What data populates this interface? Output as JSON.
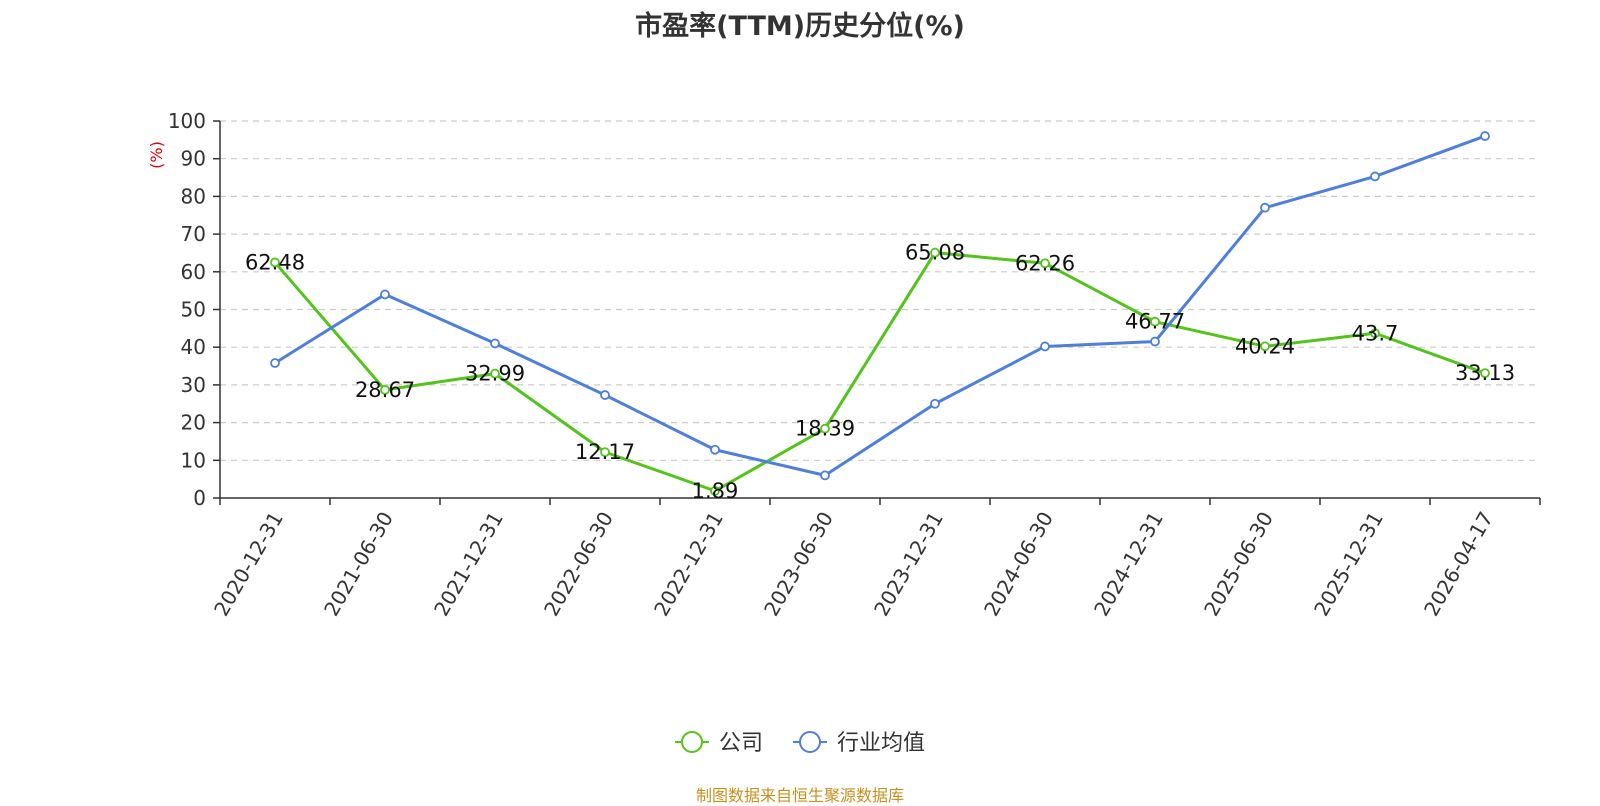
{
  "chart_data": {
    "type": "line",
    "title": "市盈率(TTM)历史分位(%)",
    "ylabel": "(%)",
    "xlabel": "",
    "ylim": [
      0,
      100
    ],
    "yticks": [
      0,
      10,
      20,
      30,
      40,
      50,
      60,
      70,
      80,
      90,
      100
    ],
    "grid": true,
    "legend_position": "bottom",
    "categories": [
      "2020-12-31",
      "2021-06-30",
      "2021-12-31",
      "2022-06-30",
      "2022-12-31",
      "2023-06-30",
      "2023-12-31",
      "2024-06-30",
      "2024-12-31",
      "2025-06-30",
      "2025-12-31",
      "2026-04-17"
    ],
    "series": [
      {
        "name": "公司",
        "color": "#52c41a",
        "show_labels": true,
        "values": [
          62.48,
          28.67,
          32.99,
          12.17,
          1.89,
          18.39,
          65.08,
          62.26,
          46.77,
          40.24,
          43.7,
          33.13
        ],
        "labels": [
          "62.48",
          "28.67",
          "32.99",
          "12.17",
          "1.89",
          "18.39",
          "65.08",
          "62.26",
          "46.77",
          "40.24",
          "43.7",
          "33.13"
        ]
      },
      {
        "name": "行业均值",
        "color": "#4e7fdc",
        "show_labels": false,
        "values": [
          35.8,
          54.0,
          41.0,
          27.3,
          12.8,
          6.0,
          25.0,
          40.2,
          41.5,
          77.0,
          85.3,
          96.0
        ]
      }
    ]
  },
  "source": "制图数据来自恒生聚源数据库"
}
